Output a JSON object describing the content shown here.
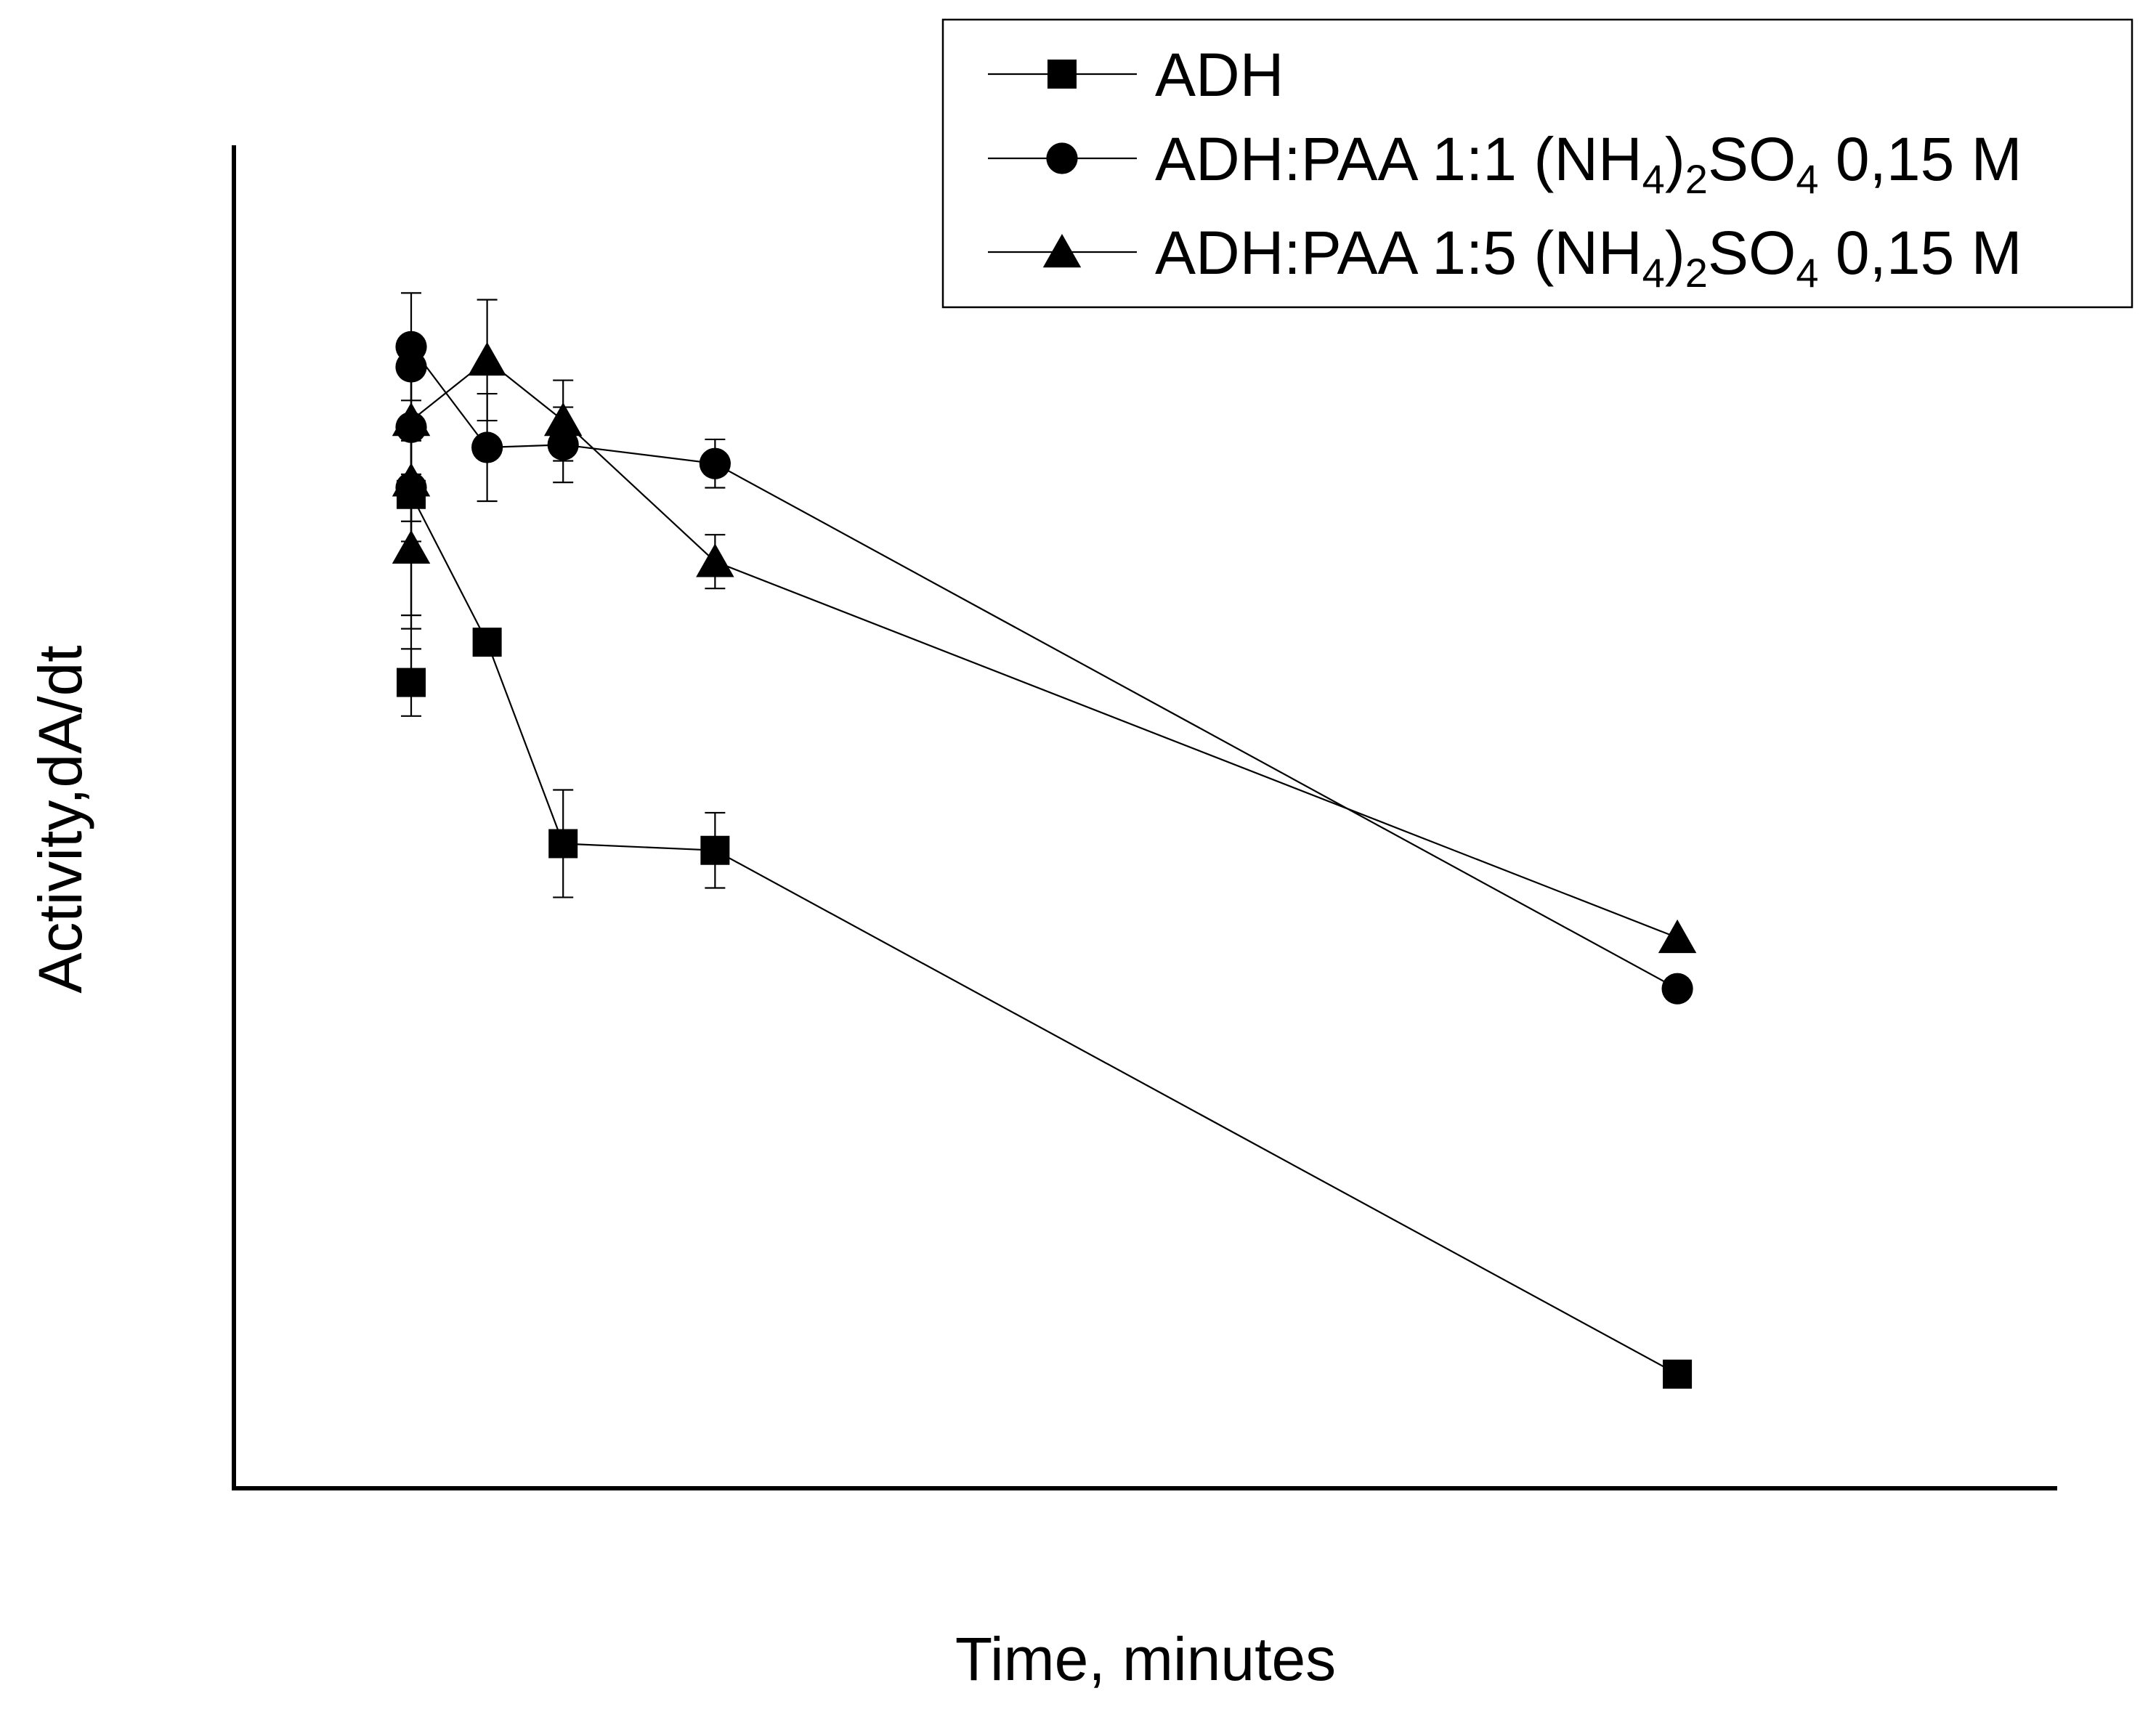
{
  "chart_data": {
    "type": "line",
    "title": "",
    "xlabel": "Time, minutes",
    "ylabel": "Activity,dA/dt",
    "x_ticks_shown": false,
    "y_ticks_shown": false,
    "grid": false,
    "legend_position": "top-right",
    "xlim": [
      -30,
      330
    ],
    "ylim": [
      0,
      1.0
    ],
    "series": [
      {
        "name": "ADH",
        "marker": "square",
        "color": "#000000",
        "points": [
          {
            "x": 5,
            "y": 0.6,
            "err": 0.025
          },
          {
            "x": 5,
            "y": 0.74,
            "err": 0.1
          },
          {
            "x": 20,
            "y": 0.63,
            "err": 0.0
          },
          {
            "x": 35,
            "y": 0.48,
            "err": 0.04
          },
          {
            "x": 65,
            "y": 0.475,
            "err": 0.028
          },
          {
            "x": 255,
            "y": 0.085,
            "err": 0.0
          }
        ]
      },
      {
        "name": "ADH:PAA 1:1 (NH4)2SO4 0,15 M",
        "name_parts": {
          "pre": "ADH:PAA 1:1 (NH",
          "sub1": "4",
          "mid": ")",
          "sub2": "2",
          "mid2": "SO",
          "sub3": "4",
          "post": " 0,15 M"
        },
        "marker": "circle",
        "color": "#000000",
        "points": [
          {
            "x": 5,
            "y": 0.745,
            "err": 0.04
          },
          {
            "x": 5,
            "y": 0.79,
            "err": 0.04
          },
          {
            "x": 5,
            "y": 0.835,
            "err": 0.0
          },
          {
            "x": 5,
            "y": 0.85,
            "err": 0.04
          },
          {
            "x": 20,
            "y": 0.775,
            "err": 0.04
          },
          {
            "x": 35,
            "y": 0.777,
            "err": 0.028
          },
          {
            "x": 65,
            "y": 0.763,
            "err": 0.018
          },
          {
            "x": 255,
            "y": 0.372,
            "err": 0.0
          }
        ]
      },
      {
        "name": "ADH:PAA 1:5 (NH4)2SO4 0,15 M",
        "name_parts": {
          "pre": "ADH:PAA 1:5 (NH",
          "sub1": "4",
          "mid": ")",
          "sub2": "2",
          "mid2": "SO",
          "sub3": "4",
          "post": " 0,15 M"
        },
        "marker": "triangle",
        "color": "#000000",
        "points": [
          {
            "x": 5,
            "y": 0.7,
            "err": 0.05
          },
          {
            "x": 5,
            "y": 0.75,
            "err": 0.03
          },
          {
            "x": 5,
            "y": 0.795,
            "err": 0.04
          },
          {
            "x": 20,
            "y": 0.84,
            "err": 0.045
          },
          {
            "x": 35,
            "y": 0.795,
            "err": 0.03
          },
          {
            "x": 65,
            "y": 0.69,
            "err": 0.02
          },
          {
            "x": 255,
            "y": 0.41,
            "err": 0.0
          }
        ]
      }
    ]
  }
}
